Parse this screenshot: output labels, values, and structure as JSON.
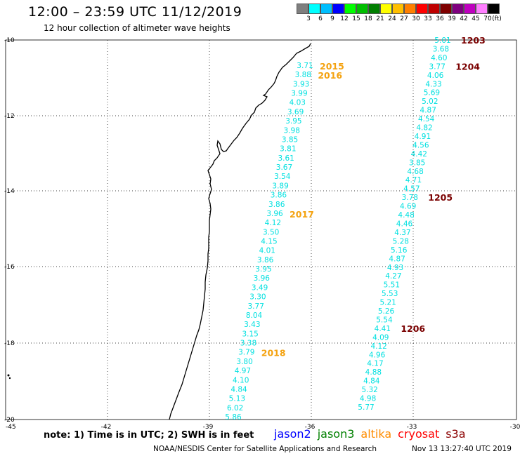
{
  "header": {
    "title": "12:00 – 23:59 UTC 11/12/2019",
    "subtitle": "12 hour collection of altimeter wave heights"
  },
  "color_scale": {
    "labels": [
      "3",
      "6",
      "9",
      "12",
      "15",
      "18",
      "21",
      "24",
      "27",
      "30",
      "33",
      "36",
      "39",
      "42",
      "45",
      "70",
      "(ft)"
    ],
    "colors": [
      "#7f7f7f",
      "#00ffff",
      "#00bfff",
      "#0000ff",
      "#00ff00",
      "#00bf00",
      "#007f00",
      "#ffff00",
      "#ffbf00",
      "#ff7f00",
      "#ff0000",
      "#bf0000",
      "#7f0000",
      "#7f007f",
      "#bf00bf",
      "#ff7fff",
      "#000000"
    ]
  },
  "axes": {
    "lon_labels": [
      "-45",
      "-42",
      "-39",
      "-36",
      "-33",
      "-30"
    ],
    "lat_labels": [
      "-10",
      "-12",
      "-14",
      "-16",
      "-18",
      "-20"
    ]
  },
  "track_colors": {
    "cyan": "#00e0e0",
    "orange": "#f4a20f",
    "maroon": "#7a0000"
  },
  "passes": {
    "west": {
      "values": [
        "3.71",
        "3.88",
        "3.93",
        "3.99",
        "4.03",
        "3.69",
        "3.95",
        "3.98",
        "3.85",
        "3.81",
        "3.61",
        "3.67",
        "3.54",
        "3.89",
        "3.86",
        "3.86",
        "3.96",
        "4.12",
        "3.50",
        "4.15",
        "4.01",
        "3.86",
        "3.95",
        "3.96",
        "3.49",
        "3.30",
        "3.77",
        "8.04",
        "3.43",
        "3.15",
        "3.38",
        "3.79",
        "3.80",
        "4.97",
        "4.10",
        "4.84",
        "5.13",
        "6.02",
        "5.86"
      ],
      "time_labels": [
        {
          "text": "2015",
          "after_index": 0
        },
        {
          "text": "2016",
          "after_index": 1
        },
        {
          "text": "2017",
          "after_index": 16
        },
        {
          "text": "2018",
          "after_index": 31
        }
      ]
    },
    "east": {
      "values": [
        "5.01",
        "3.68",
        "4.60",
        "3.77",
        "4.06",
        "4.33",
        "5.69",
        "5.02",
        "4.87",
        "4.54",
        "4.82",
        "4.91",
        "4.56",
        "4.42",
        "3.85",
        "4.68",
        "4.71",
        "4.57",
        "3.78",
        "4.69",
        "4.48",
        "4.46",
        "4.37",
        "5.28",
        "5.16",
        "4.87",
        "4.93",
        "4.27",
        "5.51",
        "5.53",
        "5.21",
        "5.26",
        "5.54",
        "4.41",
        "4.09",
        "4.12",
        "4.96",
        "4.17",
        "4.88",
        "4.84",
        "5.32",
        "4.98",
        "5.77"
      ],
      "time_labels": [
        {
          "text": "1203",
          "after_index": 0
        },
        {
          "text": "1204",
          "after_index": 3
        },
        {
          "text": "1205",
          "after_index": 18
        },
        {
          "text": "1206",
          "after_index": 33
        }
      ]
    }
  },
  "footer": {
    "note": "note: 1) Time is in UTC; 2) SWH is in feet",
    "legend": [
      {
        "name": "jason2",
        "color": "#0000ff"
      },
      {
        "name": "jason3",
        "color": "#008000"
      },
      {
        "name": "altika",
        "color": "#ff8c00"
      },
      {
        "name": "cryosat",
        "color": "#ff0000"
      },
      {
        "name": "s3a",
        "color": "#8b0000"
      }
    ],
    "credit": "NOAA/NESDIS Center for Satellite Applications and Research",
    "timestamp": "Nov 13 13:27:40 UTC 2019"
  }
}
